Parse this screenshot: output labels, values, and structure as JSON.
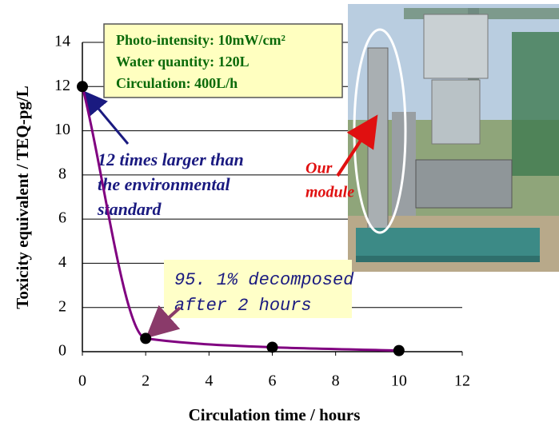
{
  "chart_data": {
    "type": "scatter",
    "x": [
      0,
      2,
      6,
      10
    ],
    "values": [
      12,
      0.6,
      0.2,
      0.05
    ],
    "color": "#000000",
    "curve_color": "#800080",
    "xlim": [
      0,
      12
    ],
    "xticks": [
      0,
      2,
      4,
      6,
      8,
      10,
      12
    ],
    "ylim": [
      0,
      14
    ],
    "yticks": [
      0,
      2,
      4,
      6,
      8,
      10,
      12,
      14
    ],
    "grid": true,
    "xlabel": "Circulation time / hours",
    "ylabel": "Toxicity equivalent / TEQ-pg/L",
    "info_box": [
      "Photo-intensity:  10mW/cm²",
      "Water quantity: 120L",
      "Circulation:  400L/h"
    ],
    "callout_start": [
      "12 times larger than",
      "the environmental",
      "standard"
    ],
    "callout_end": [
      "95. 1% decomposed",
      "after 2 hours"
    ],
    "photo_label": [
      "Our",
      "module"
    ]
  }
}
